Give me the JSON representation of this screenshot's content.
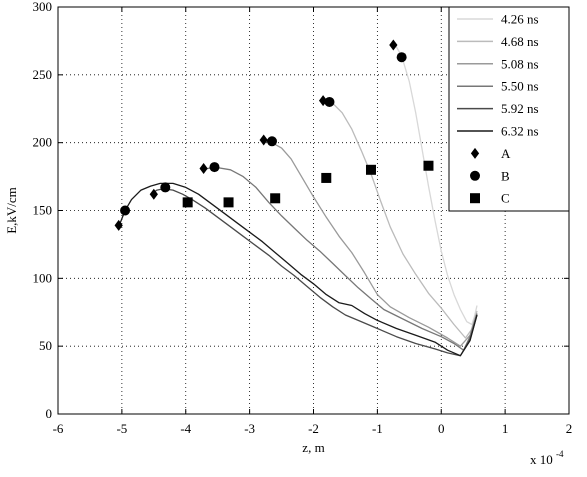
{
  "chart_data": {
    "type": "line",
    "xlabel": "z, m",
    "ylabel": "E,kV/cm",
    "x_multiplier_label": "x 10",
    "x_multiplier_exponent": "-4",
    "xlim": [
      -6,
      2
    ],
    "ylim": [
      0,
      300
    ],
    "x_ticks": [
      "-6",
      "-5",
      "-4",
      "-3",
      "-2",
      "-1",
      "0",
      "1",
      "2"
    ],
    "y_ticks": [
      "0",
      "50",
      "100",
      "150",
      "200",
      "250",
      "300"
    ],
    "grid": true,
    "legend_position": "top-right",
    "series": [
      {
        "name": "4.26 ns",
        "color": "#d8d8d8",
        "x": [
          -0.72,
          -0.62,
          -0.5,
          -0.4,
          -0.3,
          -0.2,
          -0.1,
          0.0,
          0.1,
          0.2,
          0.3,
          0.4,
          0.48,
          0.52,
          0.56
        ],
        "y": [
          272,
          264,
          245,
          222,
          195,
          168,
          143,
          120,
          102,
          88,
          77,
          68,
          66,
          72,
          80
        ]
      },
      {
        "name": "4.68 ns",
        "color": "#bbbbbb",
        "x": [
          -1.85,
          -1.7,
          -1.55,
          -1.4,
          -1.25,
          -1.1,
          -0.95,
          -0.8,
          -0.6,
          -0.4,
          -0.2,
          0.0,
          0.2,
          0.38,
          0.47,
          0.56
        ],
        "y": [
          231,
          229,
          222,
          210,
          194,
          177,
          157,
          138,
          118,
          103,
          89,
          78,
          66,
          56,
          62,
          76
        ]
      },
      {
        "name": "5.08 ns",
        "color": "#9a9a9a",
        "x": [
          -2.8,
          -2.65,
          -2.5,
          -2.35,
          -2.2,
          -2.0,
          -1.8,
          -1.6,
          -1.4,
          -1.2,
          -1.0,
          -0.8,
          -0.5,
          -0.2,
          0.1,
          0.3,
          0.45,
          0.56
        ],
        "y": [
          201,
          200,
          196,
          188,
          176,
          160,
          145,
          131,
          119,
          104,
          88,
          79,
          71,
          64,
          56,
          50,
          58,
          74
        ]
      },
      {
        "name": "5.50 ns",
        "color": "#777777",
        "x": [
          -3.75,
          -3.55,
          -3.3,
          -3.1,
          -2.9,
          -2.7,
          -2.5,
          -2.3,
          -2.1,
          -1.9,
          -1.7,
          -1.5,
          -1.3,
          -1.1,
          -0.9,
          -0.6,
          -0.3,
          0.0,
          0.2,
          0.35,
          0.45,
          0.56
        ],
        "y": [
          180,
          182,
          180,
          175,
          167,
          156,
          146,
          137,
          128,
          120,
          111,
          102,
          93,
          85,
          77,
          70,
          63,
          57,
          52,
          47,
          57,
          74
        ]
      },
      {
        "name": "5.92 ns",
        "color": "#4a4a4a",
        "x": [
          -4.55,
          -4.45,
          -4.35,
          -4.2,
          -4.05,
          -3.9,
          -3.7,
          -3.5,
          -3.3,
          -3.1,
          -2.9,
          -2.7,
          -2.5,
          -2.3,
          -2.1,
          -1.9,
          -1.7,
          -1.5,
          -1.3,
          -1.0,
          -0.7,
          -0.4,
          -0.1,
          0.1,
          0.3,
          0.45,
          0.56
        ],
        "y": [
          162,
          165,
          166,
          165,
          162,
          158,
          152,
          145,
          138,
          131,
          124,
          117,
          109,
          102,
          94,
          86,
          79,
          73,
          69,
          63,
          57,
          52,
          48,
          45,
          43,
          55,
          73
        ]
      },
      {
        "name": "6.32 ns",
        "color": "#1a1a1a",
        "x": [
          -5.05,
          -4.95,
          -4.85,
          -4.7,
          -4.55,
          -4.4,
          -4.2,
          -4.0,
          -3.8,
          -3.6,
          -3.4,
          -3.2,
          -3.0,
          -2.8,
          -2.6,
          -2.4,
          -2.2,
          -2.0,
          -1.8,
          -1.6,
          -1.4,
          -1.2,
          -1.0,
          -0.7,
          -0.4,
          -0.1,
          0.1,
          0.3,
          0.45,
          0.56
        ],
        "y": [
          138,
          150,
          158,
          165,
          168,
          170,
          170,
          167,
          162,
          155,
          148,
          141,
          134,
          127,
          119,
          111,
          103,
          96,
          88,
          82,
          80,
          74,
          69,
          63,
          58,
          53,
          47,
          43,
          54,
          73
        ]
      }
    ],
    "markers": [
      {
        "name": "A",
        "shape": "diamond",
        "x": [
          -0.75,
          -1.85,
          -2.78,
          -3.72,
          -4.5,
          -5.05
        ],
        "y": [
          272,
          231,
          202,
          181,
          162,
          139
        ]
      },
      {
        "name": "B",
        "shape": "circle",
        "x": [
          -0.62,
          -1.75,
          -2.65,
          -3.55,
          -4.32,
          -4.95
        ],
        "y": [
          263,
          230,
          201,
          182,
          167,
          150
        ]
      },
      {
        "name": "C",
        "shape": "square",
        "x": [
          -0.2,
          -1.1,
          -1.8,
          -2.6,
          -3.33,
          -3.97
        ],
        "y": [
          183,
          180,
          174,
          159,
          156,
          156
        ]
      }
    ]
  }
}
